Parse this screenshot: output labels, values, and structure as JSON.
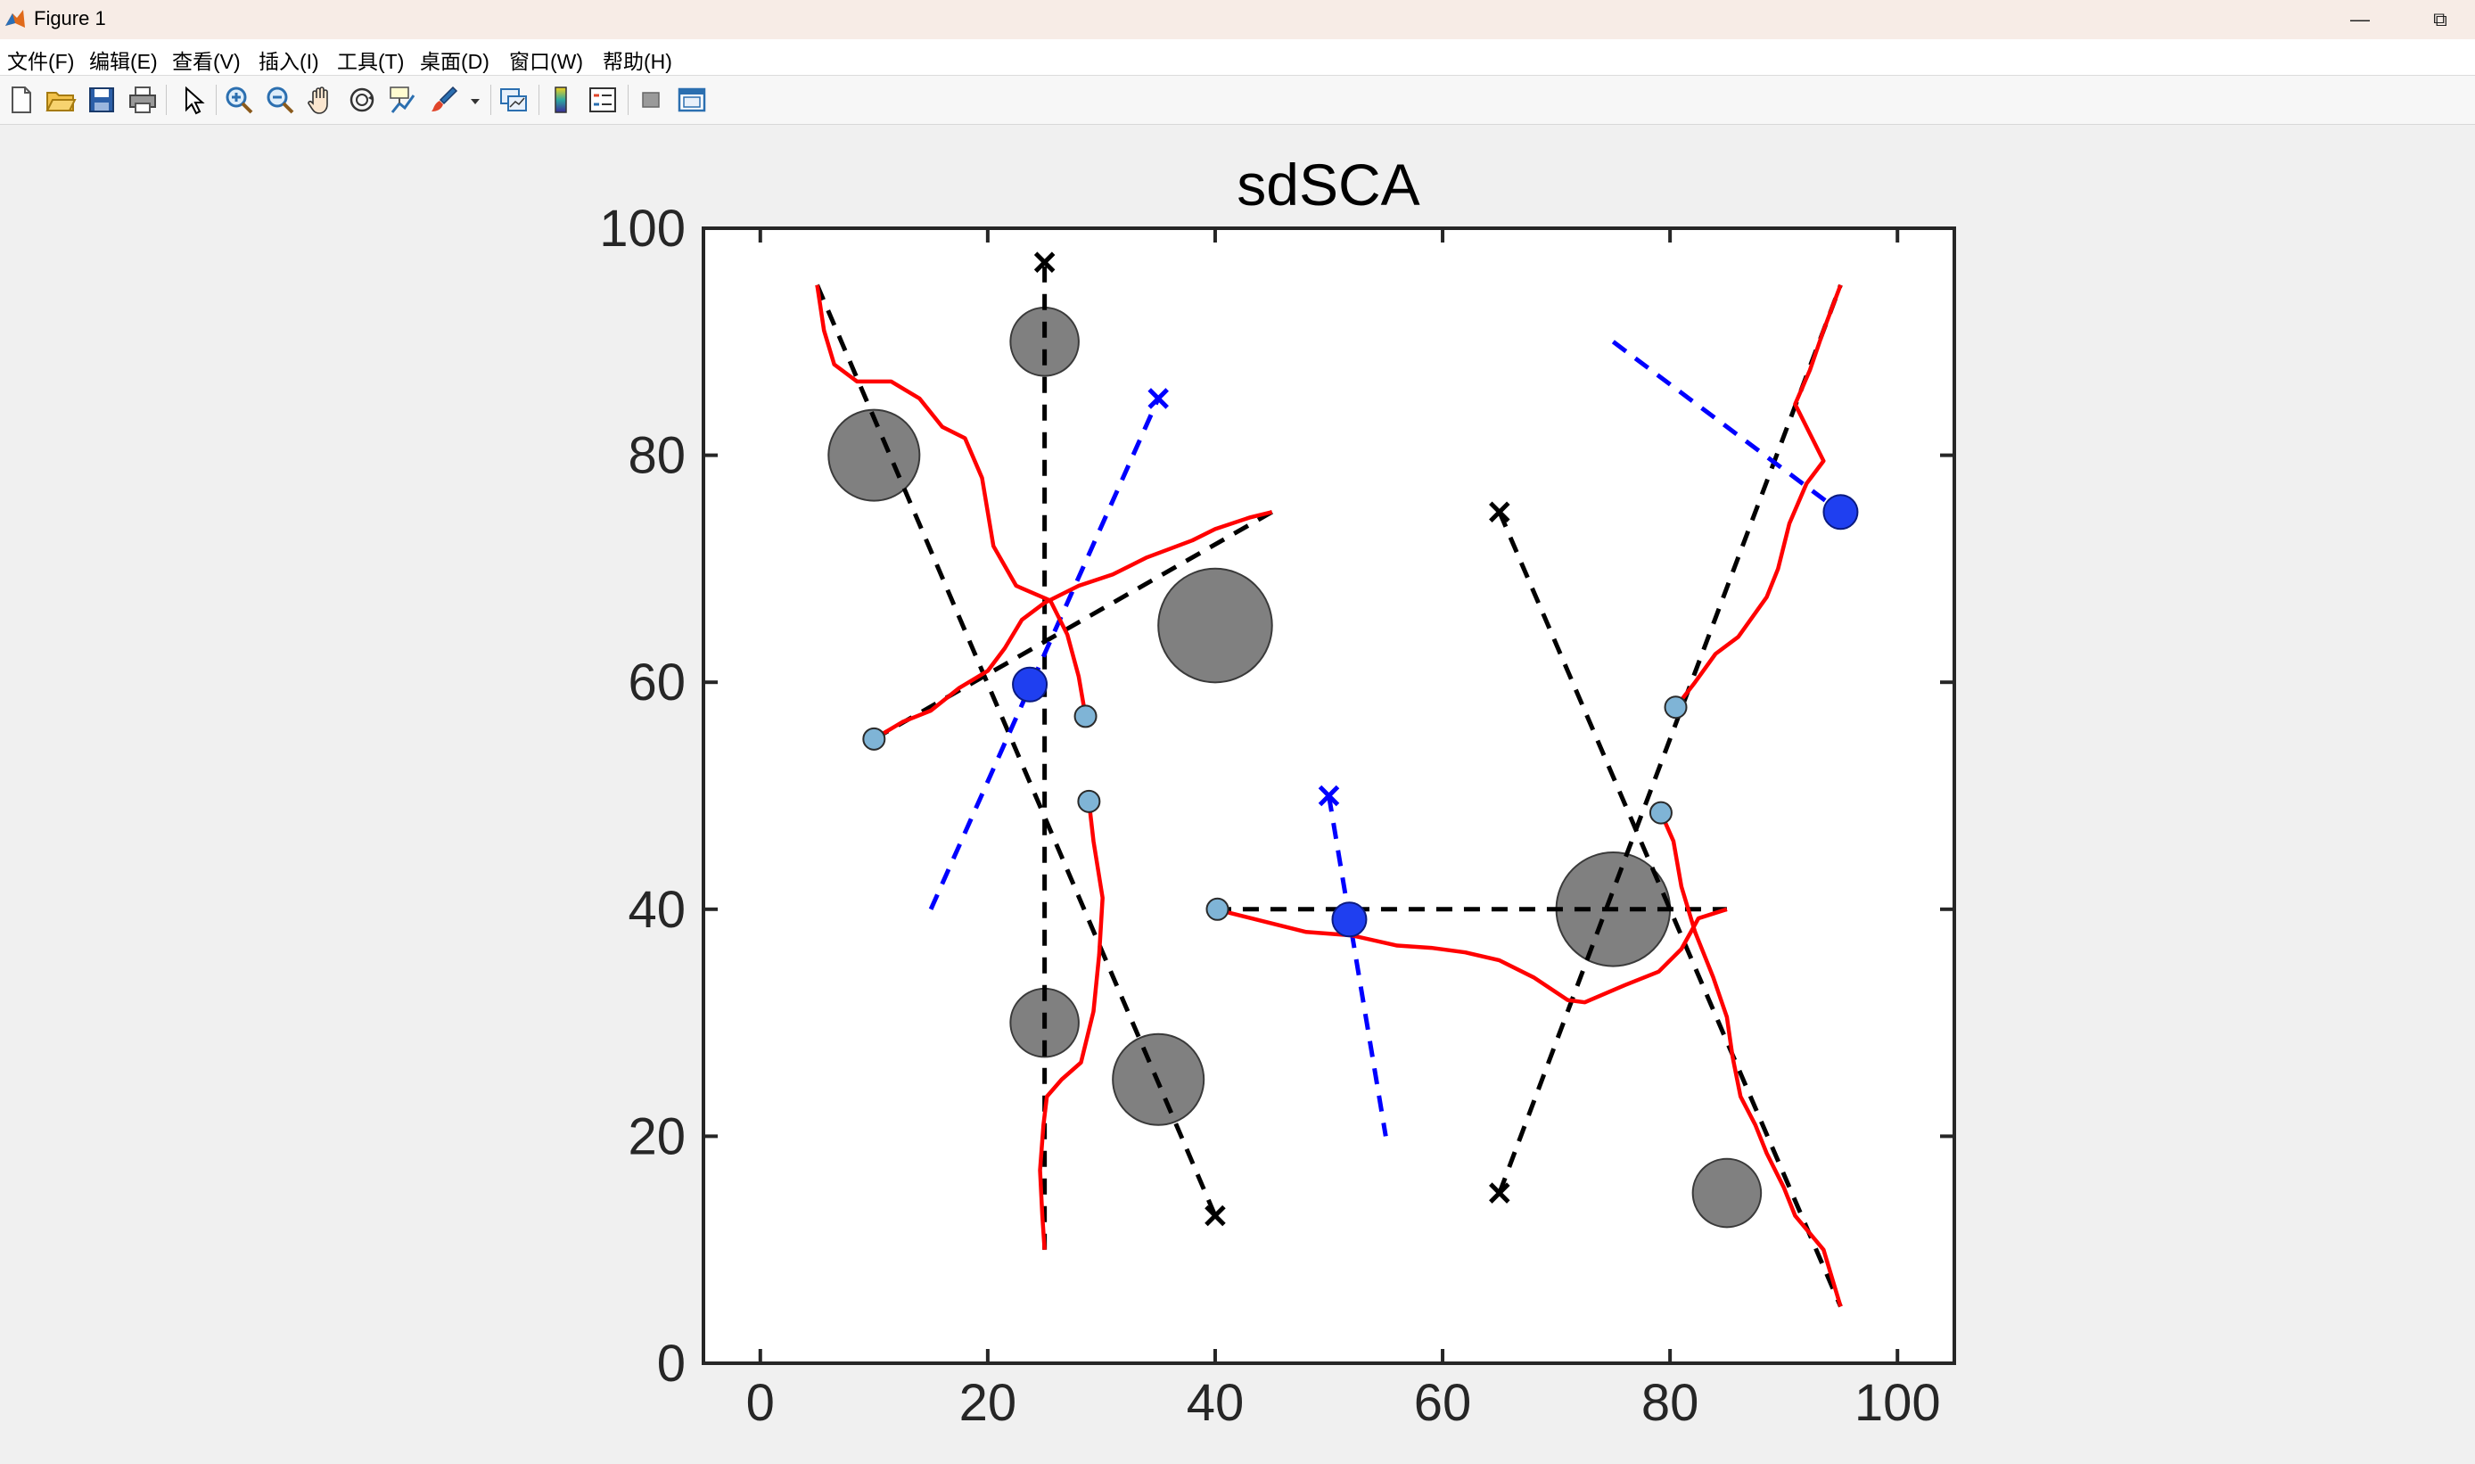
{
  "window": {
    "title": "Figure 1",
    "minimize_glyph": "—",
    "restore_glyph": "⧉"
  },
  "menu": [
    "文件(F)",
    "编辑(E)",
    "查看(V)",
    "插入(I)",
    "工具(T)",
    "桌面(D)",
    "窗口(W)",
    "帮助(H)"
  ],
  "toolbar": [
    "new-figure-icon",
    "open-file-icon",
    "save-icon",
    "print-icon",
    "select-pointer-icon",
    "zoom-in-icon",
    "zoom-out-icon",
    "pan-hand-icon",
    "rotate-3d-icon",
    "data-cursor-icon",
    "brush-icon",
    "brush-dropdown-icon",
    "link-plot-icon",
    "colorbar-icon",
    "legend-icon",
    "hide-plot-tools-icon",
    "show-plot-tools-icon"
  ],
  "colors": {
    "obstacle": "#808080",
    "path": "#ff0000",
    "dashed_black": "#000000",
    "dashed_blue": "#0000ff",
    "agent_blue": "#1f3ff0",
    "start_marker": "#7fb4d6"
  },
  "chart_data": {
    "type": "scatter",
    "title": "sdSCA",
    "xlabel": "",
    "ylabel": "",
    "xlim": [
      -5,
      105
    ],
    "ylim": [
      0,
      100
    ],
    "xticks": [
      0,
      20,
      40,
      60,
      80,
      100
    ],
    "yticks": [
      0,
      20,
      40,
      60,
      80,
      100
    ],
    "obstacles": [
      {
        "x": 25,
        "y": 90,
        "r": 3
      },
      {
        "x": 10,
        "y": 80,
        "r": 4
      },
      {
        "x": 40,
        "y": 65,
        "r": 5
      },
      {
        "x": 25,
        "y": 30,
        "r": 3
      },
      {
        "x": 35,
        "y": 25,
        "r": 4
      },
      {
        "x": 75,
        "y": 40,
        "r": 5
      },
      {
        "x": 85,
        "y": 15,
        "r": 3
      }
    ],
    "reference_lines": [
      {
        "color": "black",
        "points": [
          [
            25,
            10
          ],
          [
            25,
            97
          ]
        ]
      },
      {
        "color": "black",
        "points": [
          [
            5,
            95
          ],
          [
            40,
            13
          ]
        ]
      },
      {
        "color": "black",
        "points": [
          [
            10,
            55
          ],
          [
            45,
            75
          ]
        ]
      },
      {
        "color": "black",
        "points": [
          [
            40,
            40
          ],
          [
            85,
            40
          ]
        ]
      },
      {
        "color": "black",
        "points": [
          [
            65,
            75
          ],
          [
            95,
            5
          ]
        ]
      },
      {
        "color": "black",
        "points": [
          [
            65,
            15
          ],
          [
            95,
            95
          ]
        ]
      },
      {
        "color": "blue",
        "points": [
          [
            15,
            40
          ],
          [
            35,
            85
          ]
        ]
      },
      {
        "color": "blue",
        "points": [
          [
            50,
            50
          ],
          [
            55,
            20
          ]
        ]
      },
      {
        "color": "blue",
        "points": [
          [
            75,
            90
          ],
          [
            95,
            75
          ]
        ]
      }
    ],
    "goal_markers": [
      {
        "x": 25,
        "y": 97,
        "color": "black"
      },
      {
        "x": 40,
        "y": 13,
        "color": "black"
      },
      {
        "x": 65,
        "y": 75,
        "color": "black"
      },
      {
        "x": 65,
        "y": 15,
        "color": "black"
      },
      {
        "x": 35,
        "y": 85,
        "color": "blue"
      },
      {
        "x": 50,
        "y": 50,
        "color": "blue"
      }
    ],
    "trajectories": [
      [
        [
          25,
          10
        ],
        [
          24.8,
          13
        ],
        [
          24.6,
          17
        ],
        [
          24.9,
          21
        ],
        [
          25.2,
          23.5
        ],
        [
          26.5,
          25
        ],
        [
          28.2,
          26.5
        ],
        [
          29.3,
          31
        ],
        [
          29.8,
          36
        ],
        [
          30.1,
          41
        ],
        [
          29.3,
          46
        ],
        [
          28.9,
          49.5
        ]
      ],
      [
        [
          5,
          95
        ],
        [
          5.6,
          91
        ],
        [
          6.5,
          88
        ],
        [
          8.5,
          86.5
        ],
        [
          11.5,
          86.5
        ],
        [
          14,
          85
        ],
        [
          16,
          82.5
        ],
        [
          18,
          81.5
        ],
        [
          19.5,
          78
        ],
        [
          20.5,
          72
        ],
        [
          22.5,
          68.5
        ],
        [
          25.5,
          67.2
        ],
        [
          27,
          64.2
        ],
        [
          28,
          60.5
        ],
        [
          28.6,
          57
        ]
      ],
      [
        [
          10,
          55
        ],
        [
          12.5,
          56.5
        ],
        [
          15,
          57.5
        ],
        [
          17.5,
          59.5
        ],
        [
          20,
          61
        ],
        [
          21.5,
          63
        ],
        [
          23,
          65.5
        ],
        [
          25,
          67
        ],
        [
          28,
          68.5
        ],
        [
          31,
          69.5
        ],
        [
          34,
          71
        ],
        [
          38,
          72.5
        ],
        [
          40,
          73.5
        ],
        [
          43,
          74.5
        ],
        [
          45,
          75
        ]
      ],
      [
        [
          40,
          40
        ],
        [
          44,
          39
        ],
        [
          48,
          38
        ],
        [
          52,
          37.7
        ],
        [
          56,
          36.8
        ],
        [
          59,
          36.6
        ],
        [
          62,
          36.2
        ],
        [
          65,
          35.5
        ],
        [
          68,
          34
        ],
        [
          71,
          32
        ],
        [
          72.5,
          31.8
        ],
        [
          76,
          33.3
        ],
        [
          79,
          34.5
        ],
        [
          81,
          36.5
        ],
        [
          82.5,
          39.2
        ],
        [
          85,
          40
        ]
      ],
      [
        [
          79.2,
          48.5
        ],
        [
          80.3,
          46
        ],
        [
          81,
          42
        ],
        [
          82.2,
          38
        ],
        [
          83.8,
          34
        ],
        [
          85,
          30.5
        ],
        [
          85.5,
          27
        ],
        [
          86.2,
          23.5
        ],
        [
          87.5,
          21
        ],
        [
          88.5,
          18.5
        ],
        [
          90,
          15.5
        ],
        [
          91,
          13
        ],
        [
          93.5,
          10
        ],
        [
          95,
          5
        ]
      ],
      [
        [
          80.5,
          57.8
        ],
        [
          82.2,
          60
        ],
        [
          84,
          62.5
        ],
        [
          86,
          64
        ],
        [
          88.5,
          67.5
        ],
        [
          89.5,
          70
        ],
        [
          90.5,
          74
        ],
        [
          92,
          77.5
        ],
        [
          93.5,
          79.5
        ],
        [
          92.5,
          81.5
        ],
        [
          91,
          84.5
        ],
        [
          92.3,
          87.5
        ],
        [
          93.5,
          91
        ],
        [
          95,
          95
        ]
      ]
    ],
    "start_markers": [
      {
        "x": 10,
        "y": 55
      },
      {
        "x": 28.6,
        "y": 57
      },
      {
        "x": 28.9,
        "y": 49.5
      },
      {
        "x": 40.2,
        "y": 40
      },
      {
        "x": 80.5,
        "y": 57.8
      },
      {
        "x": 79.2,
        "y": 48.5
      }
    ],
    "agents": [
      {
        "x": 23.7,
        "y": 59.8
      },
      {
        "x": 51.8,
        "y": 39.1
      },
      {
        "x": 95,
        "y": 75
      }
    ]
  }
}
